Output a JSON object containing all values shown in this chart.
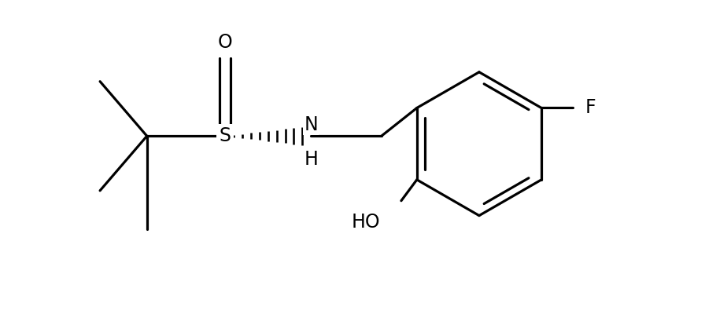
{
  "background_color": "#ffffff",
  "line_color": "#000000",
  "line_width": 2.3,
  "font_size": 17,
  "fig_width": 8.96,
  "fig_height": 4.28,
  "dpi": 100,
  "xlim": [
    0,
    8.96
  ],
  "ylim": [
    0,
    4.28
  ]
}
